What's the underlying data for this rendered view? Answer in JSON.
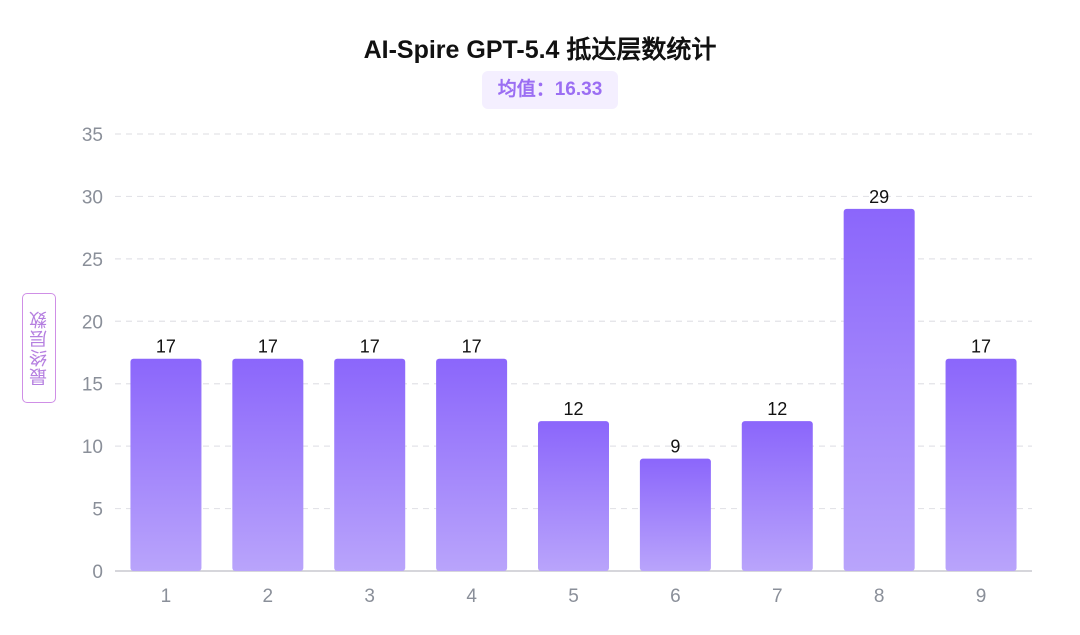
{
  "title": "AI-Spire GPT-5.4 抵达层数统计",
  "mean_label": "均值：16.33",
  "colors": {
    "bar_top": "#8b66fb",
    "bar_bottom": "#b9a4fb",
    "grid": "#e3e3e8",
    "axis": "#c8c8cf",
    "tick_text": "#8a8f99",
    "badge_bg": "#f4efff",
    "badge_text": "#9b6ef3",
    "ylabel_border": "#cf8fe6",
    "ylabel_text": "#b57fe0"
  },
  "chart_data": {
    "type": "bar",
    "title": "AI-Spire GPT-5.4 抵达层数统计",
    "xlabel": "",
    "ylabel": "最终层数",
    "categories": [
      "1",
      "2",
      "3",
      "4",
      "5",
      "6",
      "7",
      "8",
      "9"
    ],
    "values": [
      17,
      17,
      17,
      17,
      12,
      9,
      12,
      29,
      17
    ],
    "data_labels": [
      "17",
      "17",
      "17",
      "17",
      "12",
      "9",
      "12",
      "29",
      "17"
    ],
    "ylim": [
      0,
      35
    ],
    "yticks": [
      0,
      5,
      10,
      15,
      20,
      25,
      30,
      35
    ],
    "grid": true,
    "legend": "none"
  }
}
